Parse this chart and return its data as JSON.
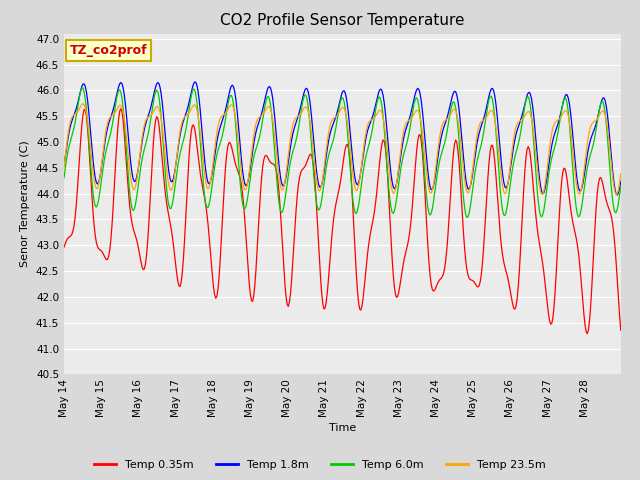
{
  "title": "CO2 Profile Sensor Temperature",
  "xlabel": "Time",
  "ylabel": "Senor Temperature (C)",
  "ylim": [
    40.5,
    47.1
  ],
  "yticks": [
    40.5,
    41.0,
    41.5,
    42.0,
    42.5,
    43.0,
    43.5,
    44.0,
    44.5,
    45.0,
    45.5,
    46.0,
    46.5,
    47.0
  ],
  "colors": {
    "Temp 0.35m": "#ff0000",
    "Temp 1.8m": "#0000ff",
    "Temp 6.0m": "#00cc00",
    "Temp 23.5m": "#ffa500"
  },
  "legend_label": "TZ_co2prof",
  "legend_box_color": "#ffffcc",
  "legend_box_edge": "#ccaa00",
  "background_color": "#d9d9d9",
  "plot_bg_color": "#ebebeb",
  "grid_color": "#ffffff",
  "title_fontsize": 11,
  "axis_fontsize": 8,
  "tick_fontsize": 7.5,
  "legend_fontsize": 8,
  "linewidth": 0.9,
  "num_points": 500
}
